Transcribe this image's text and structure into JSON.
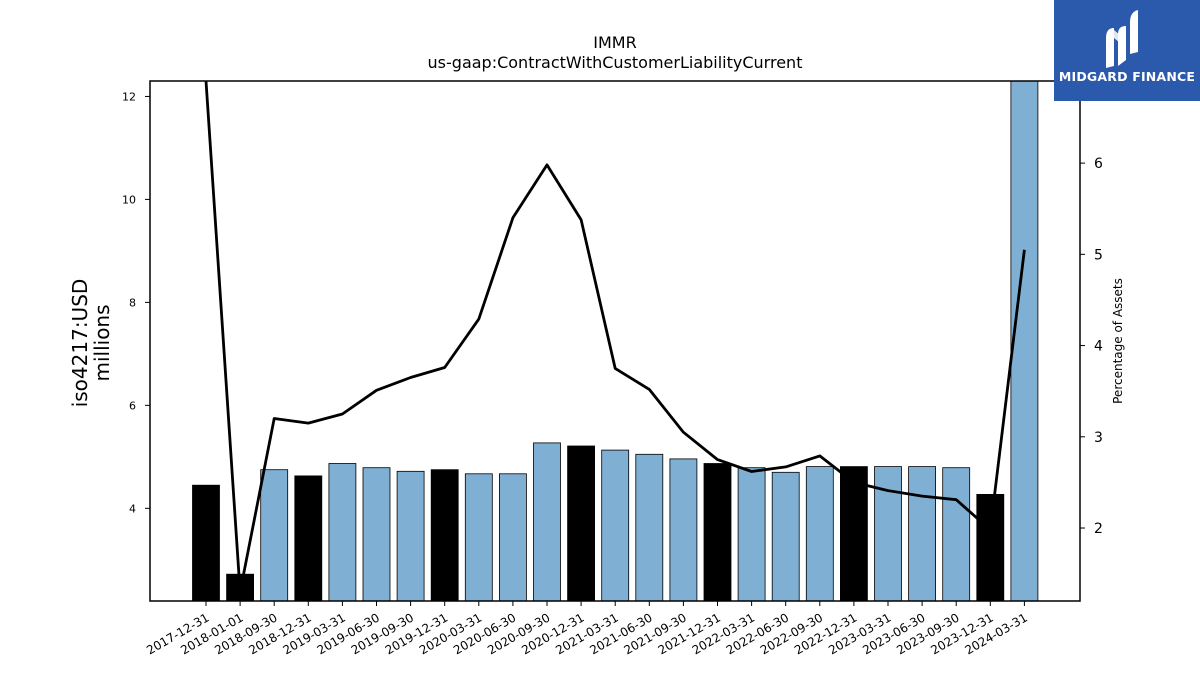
{
  "chart_data": {
    "type": "bar",
    "title": "IMMR",
    "subtitle": "us-gaap:ContractWithCustomerLiabilityCurrent",
    "ylabel_left": [
      "iso4217:USD",
      "millions"
    ],
    "ylabel_right": "Percentage of Assets",
    "ylim_left": [
      2.2,
      12.3
    ],
    "ylim_right": [
      1.2,
      6.9
    ],
    "yticks_left": [
      4,
      6,
      8,
      10,
      12
    ],
    "yticks_right": [
      2,
      3,
      4,
      5,
      6
    ],
    "categories": [
      "2017-12-31",
      "2018-01-01",
      "2018-09-30",
      "2018-12-31",
      "2019-03-31",
      "2019-06-30",
      "2019-09-30",
      "2019-12-31",
      "2020-03-31",
      "2020-06-30",
      "2020-09-30",
      "2020-12-31",
      "2021-03-31",
      "2021-06-30",
      "2021-09-30",
      "2021-12-31",
      "2022-03-31",
      "2022-06-30",
      "2022-09-30",
      "2022-12-31",
      "2023-03-31",
      "2023-06-30",
      "2023-09-30",
      "2023-12-31",
      "2024-03-31"
    ],
    "series": [
      {
        "kind": "bar",
        "axis": "left",
        "values": [
          4.45,
          2.72,
          4.75,
          4.63,
          4.87,
          4.79,
          4.72,
          4.75,
          4.67,
          4.67,
          5.27,
          5.21,
          5.13,
          5.05,
          4.96,
          4.87,
          4.79,
          4.7,
          4.81,
          4.81,
          4.81,
          4.81,
          4.79,
          4.27,
          12.3
        ],
        "annual": [
          true,
          true,
          false,
          true,
          false,
          false,
          false,
          true,
          false,
          false,
          false,
          true,
          false,
          false,
          false,
          true,
          false,
          false,
          false,
          true,
          false,
          false,
          false,
          true,
          false
        ]
      },
      {
        "kind": "line",
        "axis": "right",
        "values": [
          6.9,
          1.3,
          3.2,
          3.15,
          3.25,
          3.51,
          3.65,
          3.76,
          4.29,
          5.4,
          5.98,
          5.38,
          3.75,
          3.52,
          3.05,
          2.75,
          2.62,
          2.67,
          2.79,
          2.5,
          2.41,
          2.35,
          2.31,
          1.98,
          5.05
        ]
      }
    ],
    "colors": {
      "bar": "#7fafd3",
      "bar_annual": "#000000",
      "line": "#000000"
    },
    "brand": {
      "name": "MIDGARD FINANCE",
      "color": "#2b59ab"
    }
  }
}
